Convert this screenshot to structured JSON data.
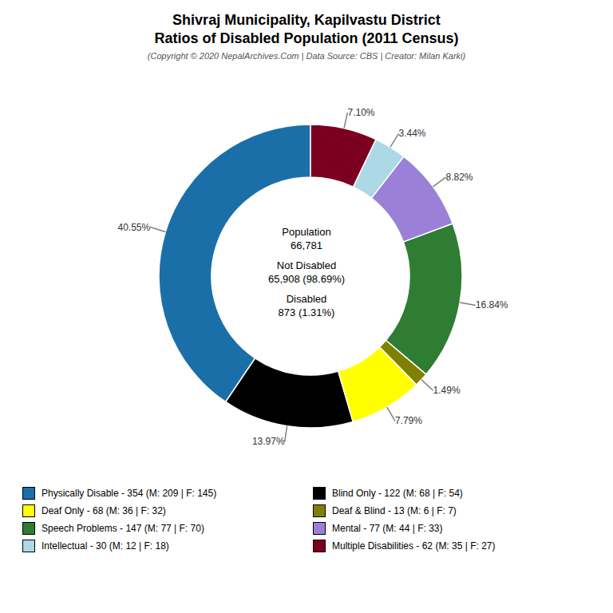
{
  "chart_data": {
    "type": "pie",
    "title": "Shivraj Municipality, Kapilvastu District\nRatios of Disabled Population (2011 Census)",
    "subtitle": "(Copyright © 2020 NepalArchives.Com | Data Source: CBS | Creator: Milan Karki)",
    "categories": [
      "Physically Disable - 354 (M: 209 | F: 145)",
      "Blind Only - 122 (M: 68 | F: 54)",
      "Deaf Only - 68 (M: 36 | F: 32)",
      "Deaf & Blind - 13 (M: 6 | F: 7)",
      "Speech Problems - 147 (M: 77 | F: 70)",
      "Mental - 77 (M: 44 | F: 33)",
      "Intellectual - 30 (M: 12 | F: 18)",
      "Multiple Disabilities - 62 (M: 35 | F: 27)"
    ],
    "values": [
      40.55,
      13.97,
      7.79,
      1.49,
      16.84,
      8.82,
      3.44,
      7.1
    ],
    "value_labels": [
      "40.55%",
      "13.97%",
      "7.79%",
      "1.49%",
      "16.84%",
      "8.82%",
      "3.44%",
      "7.10%"
    ],
    "colors": [
      "#1b6fa8",
      "#000000",
      "#ffff00",
      "#808000",
      "#2e7d32",
      "#9b80d8",
      "#add8e6",
      "#7b0020"
    ],
    "data_labels": true,
    "legend": "bottom",
    "annotations": [
      "Population\n66,781\n\nNot Disabled\n65,908 (98.69%)\n\nDisabled\n873 (1.31%)"
    ]
  }
}
